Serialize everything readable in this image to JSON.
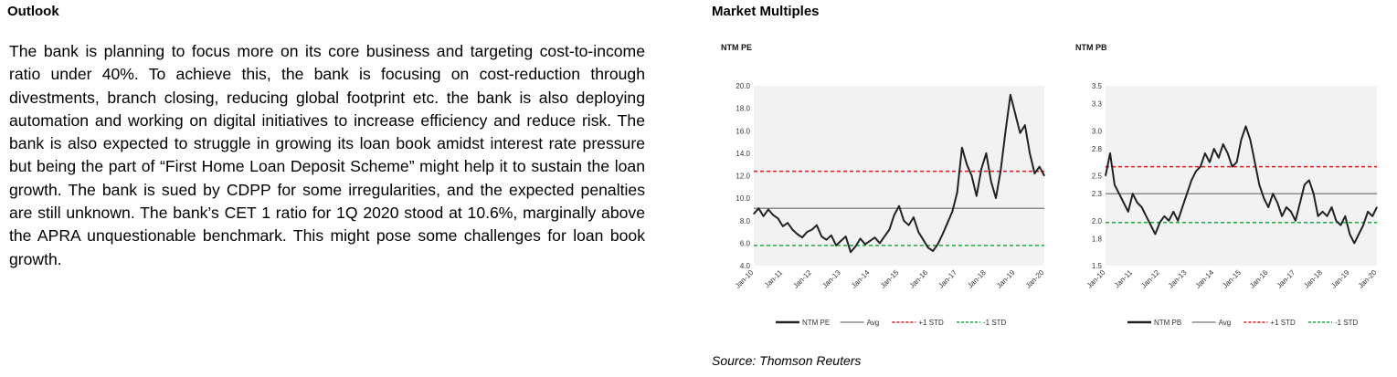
{
  "outlook": {
    "title": "Outlook",
    "body": "The bank is planning to focus more on its core business and targeting cost-to-income ratio under 40%. To achieve this, the bank is focusing on cost-reduction through divestments, branch closing, reducing global footprint etc. the bank is also deploying automation and working on digital initiatives to increase efficiency and reduce risk. The bank is also expected to struggle in growing its loan book amidst interest rate pressure but being the part of “First Home Loan Deposit Scheme” might help it to sustain the loan growth. The bank is sued by CDPP for some irregularities, and the expected penalties are still unknown. The bank’s CET 1 ratio for 1Q 2020 stood at 10.6%, marginally above the APRA unquestionable benchmark. This might pose some challenges for loan book growth."
  },
  "market": {
    "title": "Market Multiples",
    "source": "Source: Thomson Reuters"
  },
  "colors": {
    "series": "#222222",
    "avg": "#8c8c8c",
    "plus_std": "#e8141b",
    "minus_std": "#1aa841",
    "plot_bg": "#f2f2f2"
  },
  "chart_data": [
    {
      "type": "line",
      "title": "NTM PE",
      "x_ticks": [
        "Jan-10",
        "Jan-11",
        "Jan-12",
        "Jan-13",
        "Jan-14",
        "Jan-15",
        "Jan-16",
        "Jan-17",
        "Jan-18",
        "Jan-19",
        "Jan-20"
      ],
      "y_ticks": [
        "20.0",
        "18.0",
        "16.0",
        "14.0",
        "12.0",
        "10.0",
        "8.0",
        "6.0",
        "4.0"
      ],
      "ylim": [
        4.0,
        20.0
      ],
      "xlim": [
        "Jan-10",
        "Jan-20"
      ],
      "grid": false,
      "legend_position": "bottom",
      "reference_lines": [
        {
          "name": "Avg",
          "value": 9.1,
          "style": "solid"
        },
        {
          "name": "+1 STD",
          "value": 12.4,
          "style": "dashed"
        },
        {
          "name": "-1 STD",
          "value": 5.8,
          "style": "dashed"
        }
      ],
      "series": [
        {
          "name": "NTM PE",
          "x": [
            "Jan-10",
            "Mar-10",
            "May-10",
            "Jul-10",
            "Sep-10",
            "Nov-10",
            "Jan-11",
            "Mar-11",
            "May-11",
            "Jul-11",
            "Sep-11",
            "Nov-11",
            "Jan-12",
            "Mar-12",
            "May-12",
            "Jul-12",
            "Sep-12",
            "Nov-12",
            "Jan-13",
            "Mar-13",
            "May-13",
            "Jul-13",
            "Sep-13",
            "Nov-13",
            "Jan-14",
            "Mar-14",
            "May-14",
            "Jul-14",
            "Sep-14",
            "Nov-14",
            "Jan-15",
            "Mar-15",
            "May-15",
            "Jul-15",
            "Sep-15",
            "Nov-15",
            "Jan-16",
            "Mar-16",
            "May-16",
            "Jul-16",
            "Sep-16",
            "Nov-16",
            "Jan-17",
            "Mar-17",
            "May-17",
            "Jul-17",
            "Sep-17",
            "Nov-17",
            "Jan-18",
            "Mar-18",
            "May-18",
            "Jul-18",
            "Sep-18",
            "Nov-18",
            "Jan-19",
            "Mar-19",
            "May-19",
            "Jul-19",
            "Sep-19",
            "Nov-19",
            "Jan-20"
          ],
          "values": [
            8.6,
            9.1,
            8.4,
            9.0,
            8.5,
            8.2,
            7.5,
            7.8,
            7.2,
            6.8,
            6.5,
            7.0,
            7.2,
            7.6,
            6.6,
            6.3,
            6.7,
            5.8,
            6.2,
            6.6,
            5.2,
            5.7,
            6.4,
            5.9,
            6.2,
            6.5,
            6.0,
            6.6,
            7.2,
            8.5,
            9.3,
            8.0,
            7.6,
            8.3,
            7.0,
            6.3,
            5.6,
            5.3,
            5.9,
            6.8,
            7.8,
            8.8,
            10.5,
            14.5,
            13.0,
            12.0,
            10.2,
            12.6,
            14.0,
            11.5,
            10.0,
            12.5,
            16.0,
            19.2,
            17.5,
            15.8,
            16.5,
            14.0,
            12.2,
            12.8,
            12.0
          ]
        }
      ]
    },
    {
      "type": "line",
      "title": "NTM PB",
      "x_ticks": [
        "Jan-10",
        "Jan-11",
        "Jan-12",
        "Jan-13",
        "Jan-14",
        "Jan-15",
        "Jan-16",
        "Jan-17",
        "Jan-18",
        "Jan-19",
        "Jan-20"
      ],
      "y_ticks": [
        "3.5",
        "3.3",
        "3.0",
        "2.8",
        "2.5",
        "2.3",
        "2.0",
        "1.8",
        "1.5"
      ],
      "ylim": [
        1.5,
        3.5
      ],
      "xlim": [
        "Jan-10",
        "Jan-20"
      ],
      "grid": false,
      "legend_position": "bottom",
      "reference_lines": [
        {
          "name": "Avg",
          "value": 2.3,
          "style": "solid"
        },
        {
          "name": "+1 STD",
          "value": 2.6,
          "style": "dashed"
        },
        {
          "name": "-1 STD",
          "value": 1.98,
          "style": "dashed"
        }
      ],
      "series": [
        {
          "name": "NTM PB",
          "x": [
            "Jan-10",
            "Mar-10",
            "May-10",
            "Jul-10",
            "Sep-10",
            "Nov-10",
            "Jan-11",
            "Mar-11",
            "May-11",
            "Jul-11",
            "Sep-11",
            "Nov-11",
            "Jan-12",
            "Mar-12",
            "May-12",
            "Jul-12",
            "Sep-12",
            "Nov-12",
            "Jan-13",
            "Mar-13",
            "May-13",
            "Jul-13",
            "Sep-13",
            "Nov-13",
            "Jan-14",
            "Mar-14",
            "May-14",
            "Jul-14",
            "Sep-14",
            "Nov-14",
            "Jan-15",
            "Mar-15",
            "May-15",
            "Jul-15",
            "Sep-15",
            "Nov-15",
            "Jan-16",
            "Mar-16",
            "May-16",
            "Jul-16",
            "Sep-16",
            "Nov-16",
            "Jan-17",
            "Mar-17",
            "May-17",
            "Jul-17",
            "Sep-17",
            "Nov-17",
            "Jan-18",
            "Mar-18",
            "May-18",
            "Jul-18",
            "Sep-18",
            "Nov-18",
            "Jan-19",
            "Mar-19",
            "May-19",
            "Jul-19",
            "Sep-19",
            "Nov-19",
            "Jan-20"
          ],
          "values": [
            2.5,
            2.75,
            2.4,
            2.3,
            2.2,
            2.1,
            2.3,
            2.2,
            2.15,
            2.05,
            1.95,
            1.85,
            1.98,
            2.05,
            2.0,
            2.1,
            2.0,
            2.15,
            2.3,
            2.45,
            2.55,
            2.6,
            2.75,
            2.65,
            2.8,
            2.7,
            2.85,
            2.75,
            2.6,
            2.65,
            2.9,
            3.05,
            2.9,
            2.65,
            2.4,
            2.25,
            2.15,
            2.3,
            2.2,
            2.05,
            2.15,
            2.1,
            2.0,
            2.2,
            2.4,
            2.45,
            2.3,
            2.05,
            2.1,
            2.05,
            2.15,
            2.0,
            1.95,
            2.05,
            1.85,
            1.75,
            1.85,
            1.95,
            2.1,
            2.05,
            2.15
          ]
        }
      ]
    }
  ]
}
